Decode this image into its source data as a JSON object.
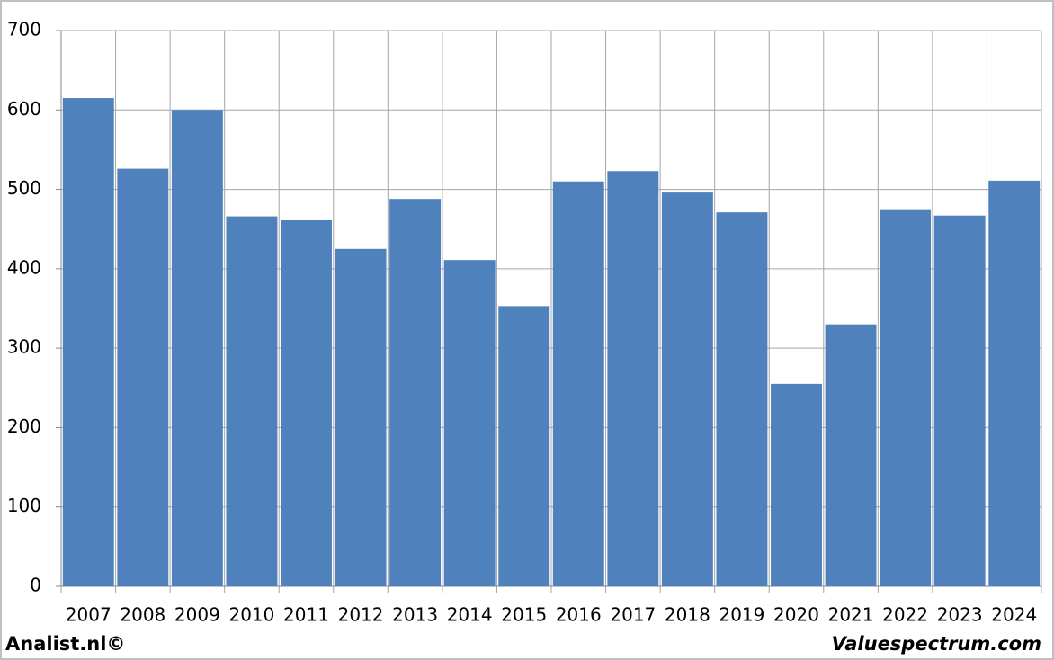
{
  "chart_data": {
    "type": "bar",
    "categories": [
      "2007",
      "2008",
      "2009",
      "2010",
      "2011",
      "2012",
      "2013",
      "2014",
      "2015",
      "2016",
      "2017",
      "2018",
      "2019",
      "2020",
      "2021",
      "2022",
      "2023",
      "2024"
    ],
    "values": [
      615,
      526,
      600,
      466,
      461,
      425,
      488,
      411,
      353,
      510,
      523,
      496,
      471,
      255,
      330,
      475,
      467,
      511
    ],
    "color": "#4f81bd",
    "ylim": [
      0,
      700
    ],
    "yticks": [
      0,
      100,
      200,
      300,
      400,
      500,
      600,
      700
    ],
    "grid": true,
    "source_left": "Analist.nl©",
    "source_right": "Valuespectrum.com"
  }
}
